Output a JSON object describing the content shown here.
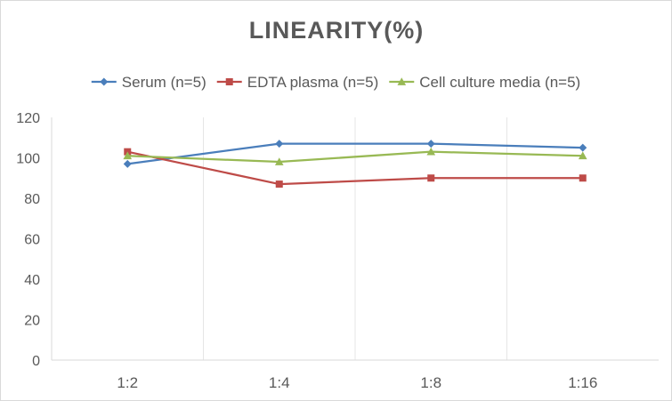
{
  "chart_data": {
    "type": "line",
    "title": "LINEARITY(%)",
    "xlabel": "",
    "ylabel": "",
    "categories": [
      "1:2",
      "1:4",
      "1:8",
      "1:16"
    ],
    "ylim": [
      0,
      120
    ],
    "yticks": [
      0,
      20,
      40,
      60,
      80,
      100,
      120
    ],
    "grid": "vertical",
    "legend": "top",
    "series": [
      {
        "name": "Serum (n=5)",
        "color": "#4a7ebb",
        "marker": "diamond",
        "values": [
          97,
          107,
          107,
          105
        ]
      },
      {
        "name": "EDTA plasma (n=5)",
        "color": "#be4b48",
        "marker": "square",
        "values": [
          103,
          87,
          90,
          90
        ]
      },
      {
        "name": "Cell culture media (n=5)",
        "color": "#98b954",
        "marker": "triangle",
        "values": [
          101,
          98,
          103,
          101
        ]
      }
    ]
  }
}
